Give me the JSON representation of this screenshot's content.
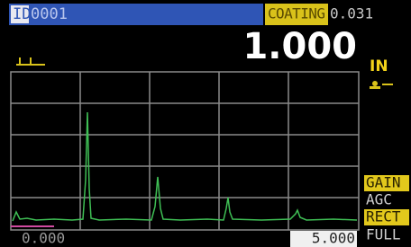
{
  "header": {
    "id_label": "ID",
    "id_value": "0001",
    "coating_label": "COATING",
    "coating_value": "0.031"
  },
  "reading": {
    "value": "1.000",
    "unit": "IN"
  },
  "menu": [
    "GAIN",
    "AGC",
    "RECT",
    "FULL"
  ],
  "range": {
    "start": "0.000",
    "end": "5.000"
  }
}
